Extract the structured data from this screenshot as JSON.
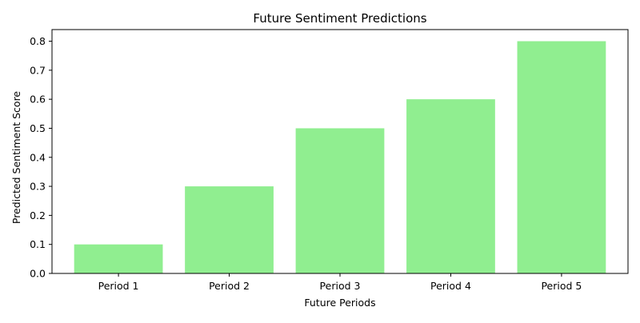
{
  "chart_data": {
    "type": "bar",
    "title": "Future Sentiment Predictions",
    "xlabel": "Future Periods",
    "ylabel": "Predicted Sentiment Score",
    "categories": [
      "Period 1",
      "Period 2",
      "Period 3",
      "Period 4",
      "Period 5"
    ],
    "values": [
      0.1,
      0.3,
      0.5,
      0.6,
      0.8
    ],
    "ylim": [
      0,
      0.84
    ],
    "yticks": [
      0.0,
      0.1,
      0.2,
      0.3,
      0.4,
      0.5,
      0.6,
      0.7,
      0.8
    ],
    "ytick_labels": [
      "0.0",
      "0.1",
      "0.2",
      "0.3",
      "0.4",
      "0.5",
      "0.6",
      "0.7",
      "0.8"
    ],
    "bar_color": "#90ee90",
    "grid": false,
    "legend": "none"
  }
}
